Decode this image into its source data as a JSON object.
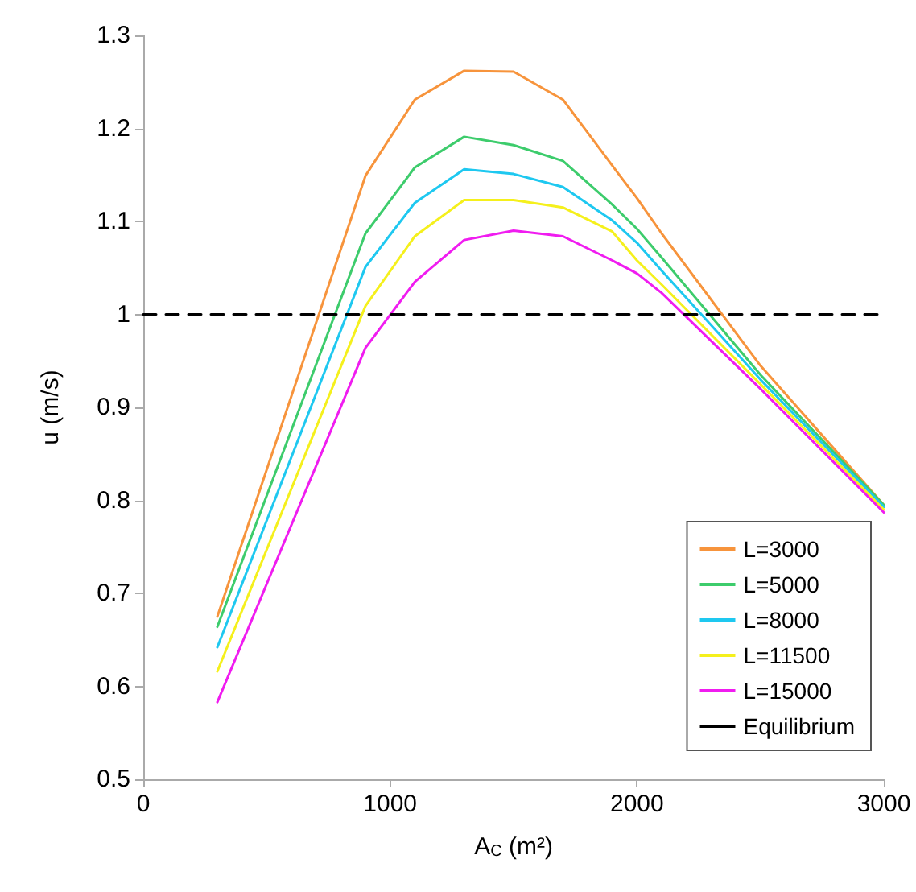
{
  "chart_data": {
    "type": "line",
    "xlabel": "A$_{C}$ (m²)",
    "ylabel": "u (m/s)",
    "xlim": [
      0,
      3000
    ],
    "xticks": [
      0,
      1000,
      2000,
      3000
    ],
    "ylim": [
      0.5,
      1.3
    ],
    "yticks": [
      0.5,
      0.6,
      0.7,
      0.8,
      0.9,
      1,
      1.1,
      1.2,
      1.3
    ],
    "x": [
      300,
      900,
      1100,
      1300,
      1500,
      1700,
      1900,
      2000,
      2100,
      2500,
      3000
    ],
    "grid": false,
    "legend": "bottom right",
    "marker": "none",
    "line_style": "solid",
    "series": [
      {
        "name": "L=3000",
        "color": "#f7943c",
        "values": [
          0.675,
          1.149,
          1.231,
          1.262,
          1.261,
          1.231,
          1.16,
          1.125,
          1.087,
          0.945,
          0.795
        ]
      },
      {
        "name": "L=5000",
        "color": "#3dcc6c",
        "values": [
          0.664,
          1.087,
          1.158,
          1.191,
          1.182,
          1.165,
          1.118,
          1.092,
          1.061,
          0.935,
          0.795
        ]
      },
      {
        "name": "L=8000",
        "color": "#1ec8f0",
        "values": [
          0.642,
          1.051,
          1.12,
          1.156,
          1.151,
          1.137,
          1.101,
          1.077,
          1.047,
          0.93,
          0.793
        ]
      },
      {
        "name": "L=11500",
        "color": "#f5f01c",
        "values": [
          0.616,
          1.009,
          1.084,
          1.123,
          1.123,
          1.115,
          1.089,
          1.058,
          1.032,
          0.925,
          0.79
        ]
      },
      {
        "name": "L=15000",
        "color": "#f01cf0",
        "values": [
          0.583,
          0.964,
          1.035,
          1.08,
          1.09,
          1.084,
          1.058,
          1.044,
          1.023,
          0.92,
          0.787
        ]
      },
      {
        "name": "Equilibrium",
        "color": "#000000",
        "x": [
          0,
          3000
        ],
        "values": [
          1,
          1
        ],
        "line_style": "dashed"
      }
    ]
  }
}
